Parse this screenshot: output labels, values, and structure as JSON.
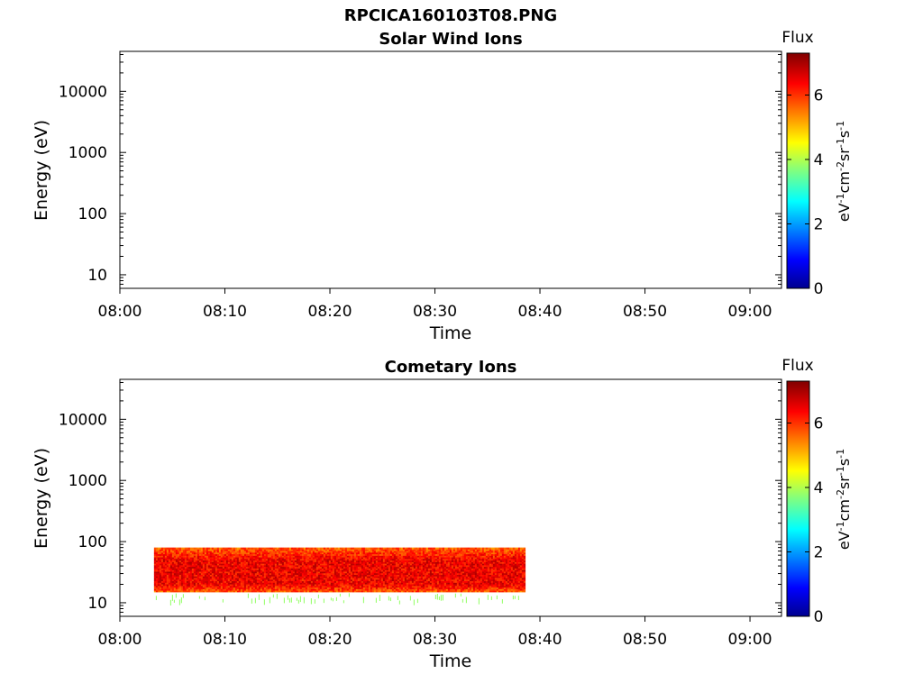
{
  "figure": {
    "title": "RPCICA160103T08.PNG"
  },
  "chart_data": [
    {
      "type": "heatmap",
      "title": "Solar Wind Ions",
      "xlabel": "Time",
      "ylabel": "Energy (eV)",
      "x_ticks": [
        "08:00",
        "08:10",
        "08:20",
        "08:30",
        "08:40",
        "08:50",
        "09:00"
      ],
      "x_range": [
        "08:00",
        "09:03"
      ],
      "y_scale": "log",
      "y_ticks": [
        10,
        100,
        1000,
        10000
      ],
      "y_tick_labels": [
        "10",
        "100",
        "1000",
        "10000"
      ],
      "y_range": [
        6,
        45000
      ],
      "colorbar": {
        "label": "eV⁻¹cm⁻²sr⁻¹s⁻¹",
        "title": "Flux",
        "ticks": [
          0,
          2,
          4,
          6
        ],
        "tick_labels": [
          "0",
          "2",
          "4",
          "6"
        ],
        "range": [
          0,
          7.3
        ]
      },
      "data": []
    },
    {
      "type": "heatmap",
      "title": "Cometary Ions",
      "xlabel": "Time",
      "ylabel": "Energy (eV)",
      "x_ticks": [
        "08:00",
        "08:10",
        "08:20",
        "08:30",
        "08:40",
        "08:50",
        "09:00"
      ],
      "x_range": [
        "08:00",
        "09:03"
      ],
      "y_scale": "log",
      "y_ticks": [
        10,
        100,
        1000,
        10000
      ],
      "y_tick_labels": [
        "10",
        "100",
        "1000",
        "10000"
      ],
      "y_range": [
        6,
        45000
      ],
      "colorbar": {
        "label": "eV⁻¹cm⁻²sr⁻¹s⁻¹",
        "title": "Flux",
        "ticks": [
          0,
          2,
          4,
          6
        ],
        "tick_labels": [
          "0",
          "2",
          "4",
          "6"
        ],
        "range": [
          0,
          7.3
        ]
      },
      "data": [
        {
          "time_start": "08:03:15",
          "time_end": "08:38:30",
          "energy_range": [
            15,
            80
          ],
          "core_energy_range": [
            20,
            50
          ],
          "flux_range": [
            4,
            7
          ]
        }
      ]
    }
  ]
}
